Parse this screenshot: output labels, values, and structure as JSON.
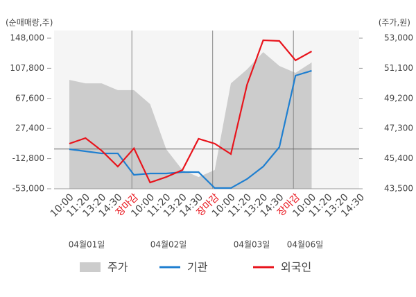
{
  "chart_data": {
    "type": "line",
    "y_label": "(순매매량,주)",
    "y2_label": "(주가,원)",
    "categories": [
      "10:00",
      "11:20",
      "13:20",
      "14:30",
      "장마감",
      "10:00",
      "11:20",
      "13:20",
      "14:30",
      "장마감",
      "10:00",
      "11:20",
      "13:20",
      "14:30",
      "장마감",
      "10:00",
      "11:20",
      "13:20",
      "14:30"
    ],
    "date_labels": [
      "04월01일",
      "04월02일",
      "04월03일",
      "04월06일"
    ],
    "ylim": [
      -53000,
      148000
    ],
    "yticks": [
      {
        "value": -53000,
        "label": "-53,000"
      },
      {
        "value": -12800,
        "label": "-12,800"
      },
      {
        "value": 27400,
        "label": "27,400"
      },
      {
        "value": 67600,
        "label": "67,600"
      },
      {
        "value": 107800,
        "label": "107,800"
      },
      {
        "value": 148000,
        "label": "148,000"
      }
    ],
    "y2lim": [
      43500,
      53000
    ],
    "y2ticks": [
      {
        "value": 43500,
        "label": "43,500"
      },
      {
        "value": 45400,
        "label": "45,400"
      },
      {
        "value": 47300,
        "label": "47,300"
      },
      {
        "value": 49200,
        "label": "49,200"
      },
      {
        "value": 51100,
        "label": "51,100"
      },
      {
        "value": 53000,
        "label": "53,000"
      }
    ],
    "series": [
      {
        "name": "주가",
        "type": "area",
        "axis": "y2",
        "color": "#cccccc",
        "values": [
          50370,
          50150,
          50150,
          49720,
          49720,
          48840,
          45990,
          44680,
          44240,
          44680,
          50150,
          51030,
          52120,
          51250,
          50810,
          51470,
          null,
          null,
          null
        ]
      },
      {
        "name": "기관",
        "type": "line",
        "color": "#1f7fd0",
        "values": [
          -200,
          -3000,
          -5800,
          -5800,
          -34500,
          -32600,
          -32600,
          -30800,
          -30800,
          -52100,
          -52100,
          -40000,
          -23400,
          2600,
          98000,
          104500,
          null,
          null,
          null
        ]
      },
      {
        "name": "외국인",
        "type": "line",
        "color": "#e8141c",
        "values": [
          7200,
          14600,
          -2100,
          -23400,
          1000,
          -44700,
          -37300,
          -28000,
          13700,
          7200,
          -6700,
          85900,
          145200,
          144300,
          118400,
          130400,
          null,
          null,
          null
        ]
      }
    ]
  }
}
